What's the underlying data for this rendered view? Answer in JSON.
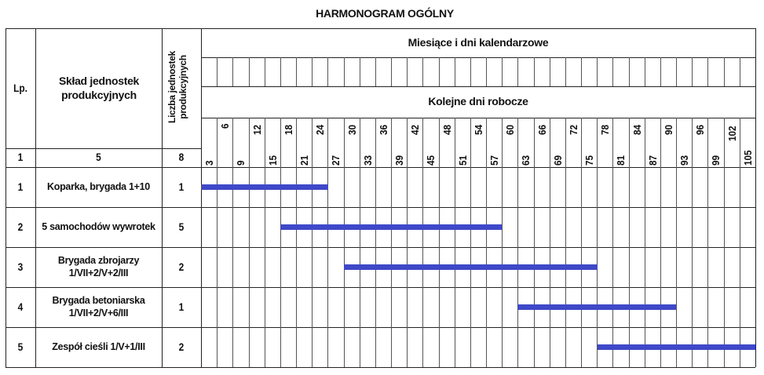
{
  "title": "HARMONOGRAM OGÓLNY",
  "headers": {
    "lp": "Lp.",
    "sklad": "Skład jednostek produkcyjnych",
    "liczba": "Liczba jednostek produkcyjnych",
    "months": "Miesiące i dni kalendarzowe",
    "workdays": "Kolejne dni robocze",
    "col_numbers": {
      "lp": "1",
      "sklad": "5",
      "liczba": "8"
    }
  },
  "rows": [
    {
      "lp": "1",
      "name_line1": "Koparka, brygada 1+10",
      "name_line2": "",
      "count": "1"
    },
    {
      "lp": "2",
      "name_line1": "5 samochodów wywrotek",
      "name_line2": "",
      "count": "5"
    },
    {
      "lp": "3",
      "name_line1": "Brygada zbrojarzy",
      "name_line2": "1/VII+2/V+2/III",
      "count": "2"
    },
    {
      "lp": "4",
      "name_line1": "Brygada betoniarska",
      "name_line2": "1/VII+2/V+6/III",
      "count": "1"
    },
    {
      "lp": "5",
      "name_line1": "Zespół cieśli 1/V+1/III",
      "name_line2": "",
      "count": "2"
    }
  ],
  "chart_data": {
    "type": "gantt",
    "title": "HARMONOGRAM OGÓLNY",
    "xlabel": "Kolejne dni robocze",
    "x_ticks": [
      3,
      6,
      9,
      12,
      15,
      18,
      21,
      24,
      27,
      30,
      33,
      36,
      39,
      42,
      45,
      48,
      51,
      54,
      57,
      60,
      63,
      66,
      69,
      72,
      75,
      78,
      81,
      84,
      87,
      90,
      93,
      96,
      99,
      102,
      105
    ],
    "xlim": [
      0,
      105
    ],
    "bar_color": "#3f48c8",
    "tasks": [
      {
        "task": "Koparka, brygada 1+10",
        "start": 1,
        "end": 24
      },
      {
        "task": "5 samochodów wywrotek",
        "start": 16,
        "end": 57
      },
      {
        "task": "Brygada zbrojarzy",
        "start": 28,
        "end": 75
      },
      {
        "task": "Brygada betoniarska",
        "start": 61,
        "end": 90
      },
      {
        "task": "Zespół cieśli 1/V+1/III",
        "start": 76,
        "end": 105
      }
    ]
  }
}
